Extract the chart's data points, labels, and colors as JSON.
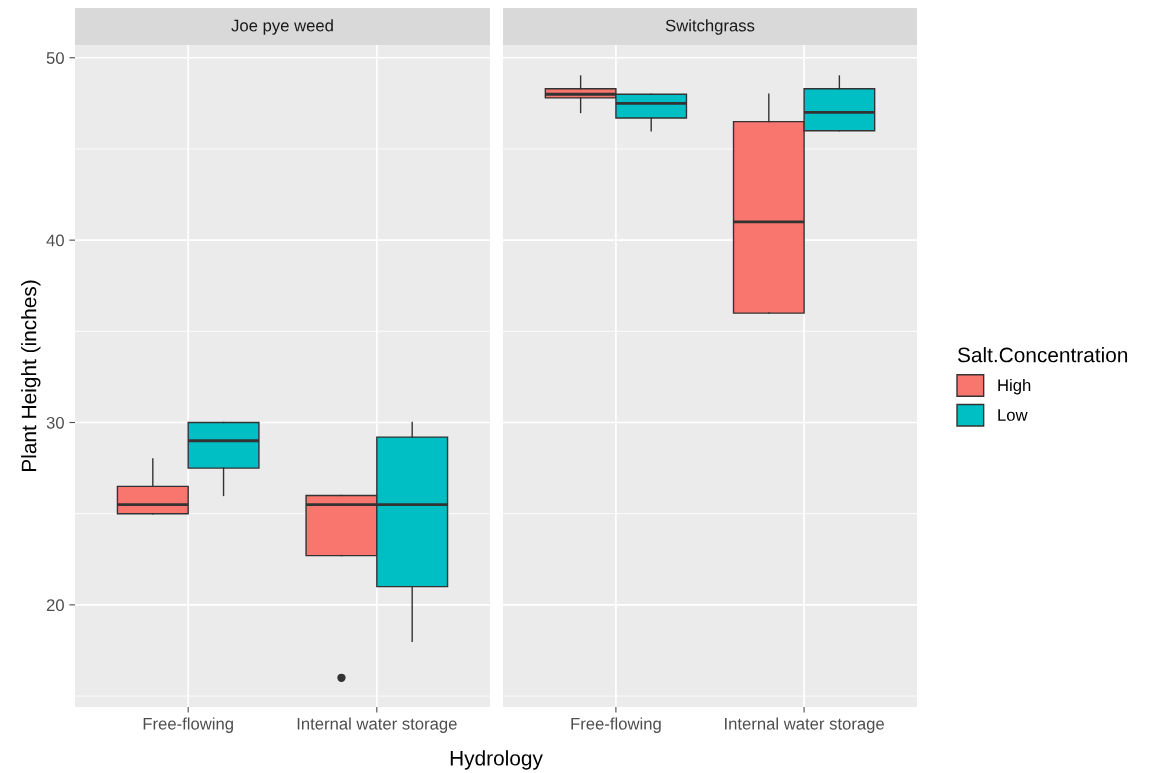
{
  "chart_data": [
    {
      "type": "box",
      "title": "Joe pye weed",
      "xlabel": "Hydrology",
      "ylabel": "Plant Height (inches)",
      "categories": [
        "Free-flowing",
        "Internal water storage"
      ],
      "legend_title": "Salt.Concentration",
      "ylim": [
        14.4,
        50.7
      ],
      "yticks": [
        20,
        30,
        40,
        50
      ],
      "grid": true,
      "legend": "right",
      "series": [
        {
          "name": "High",
          "color": "#f8766d",
          "boxes": [
            {
              "low": 25,
              "q1": 25,
              "median": 25.5,
              "q3": 26.5,
              "high": 28
            },
            {
              "low": 22.7,
              "q1": 22.7,
              "median": 25.5,
              "q3": 26,
              "high": 26,
              "outliers": [
                16
              ]
            }
          ]
        },
        {
          "name": "Low",
          "color": "#00bfc4",
          "boxes": [
            {
              "low": 26,
              "q1": 27.5,
              "median": 29,
              "q3": 30,
              "high": 30
            },
            {
              "low": 18,
              "q1": 21,
              "median": 25.5,
              "q3": 29.2,
              "high": 30
            }
          ]
        }
      ]
    },
    {
      "type": "box",
      "title": "Switchgrass",
      "categories": [
        "Free-flowing",
        "Internal water storage"
      ],
      "ylim": [
        14.4,
        50.7
      ],
      "yticks": [
        20,
        30,
        40,
        50
      ],
      "tick_labels": "x",
      "grid": true,
      "series": [
        {
          "color": "#f8766d",
          "boxes": [
            {
              "low": 47,
              "q1": 47.8,
              "median": 48,
              "q3": 48.3,
              "high": 49
            },
            {
              "low": 36,
              "q1": 36,
              "median": 41,
              "q3": 46.5,
              "high": 48
            }
          ]
        },
        {
          "color": "#00bfc4",
          "boxes": [
            {
              "low": 46,
              "q1": 46.7,
              "median": 47.5,
              "q3": 48,
              "high": 48
            },
            {
              "low": 46,
              "q1": 46,
              "median": 47,
              "q3": 48.3,
              "high": 49
            }
          ]
        }
      ]
    }
  ]
}
